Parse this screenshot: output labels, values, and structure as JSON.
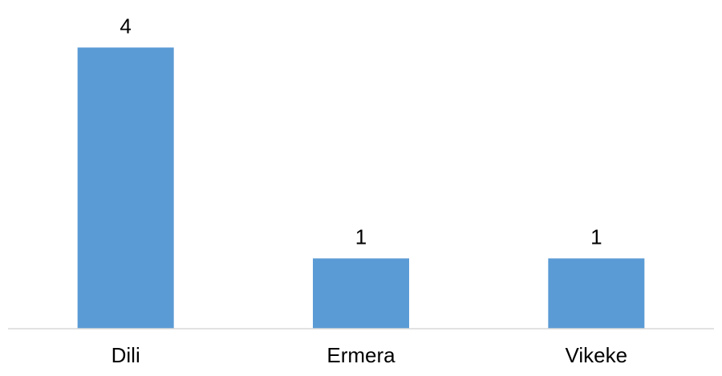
{
  "chart_data": {
    "type": "bar",
    "categories": [
      "Dili",
      "Ermera",
      "Vikeke"
    ],
    "values": [
      4,
      1,
      1
    ],
    "data_labels": [
      "4",
      "1",
      "1"
    ],
    "title": "",
    "xlabel": "",
    "ylabel": "",
    "ylim": [
      0,
      4.22
    ],
    "grid": false,
    "legend": "none",
    "bar_color": "#5b9bd5",
    "axis_color": "#d9d9d9"
  }
}
